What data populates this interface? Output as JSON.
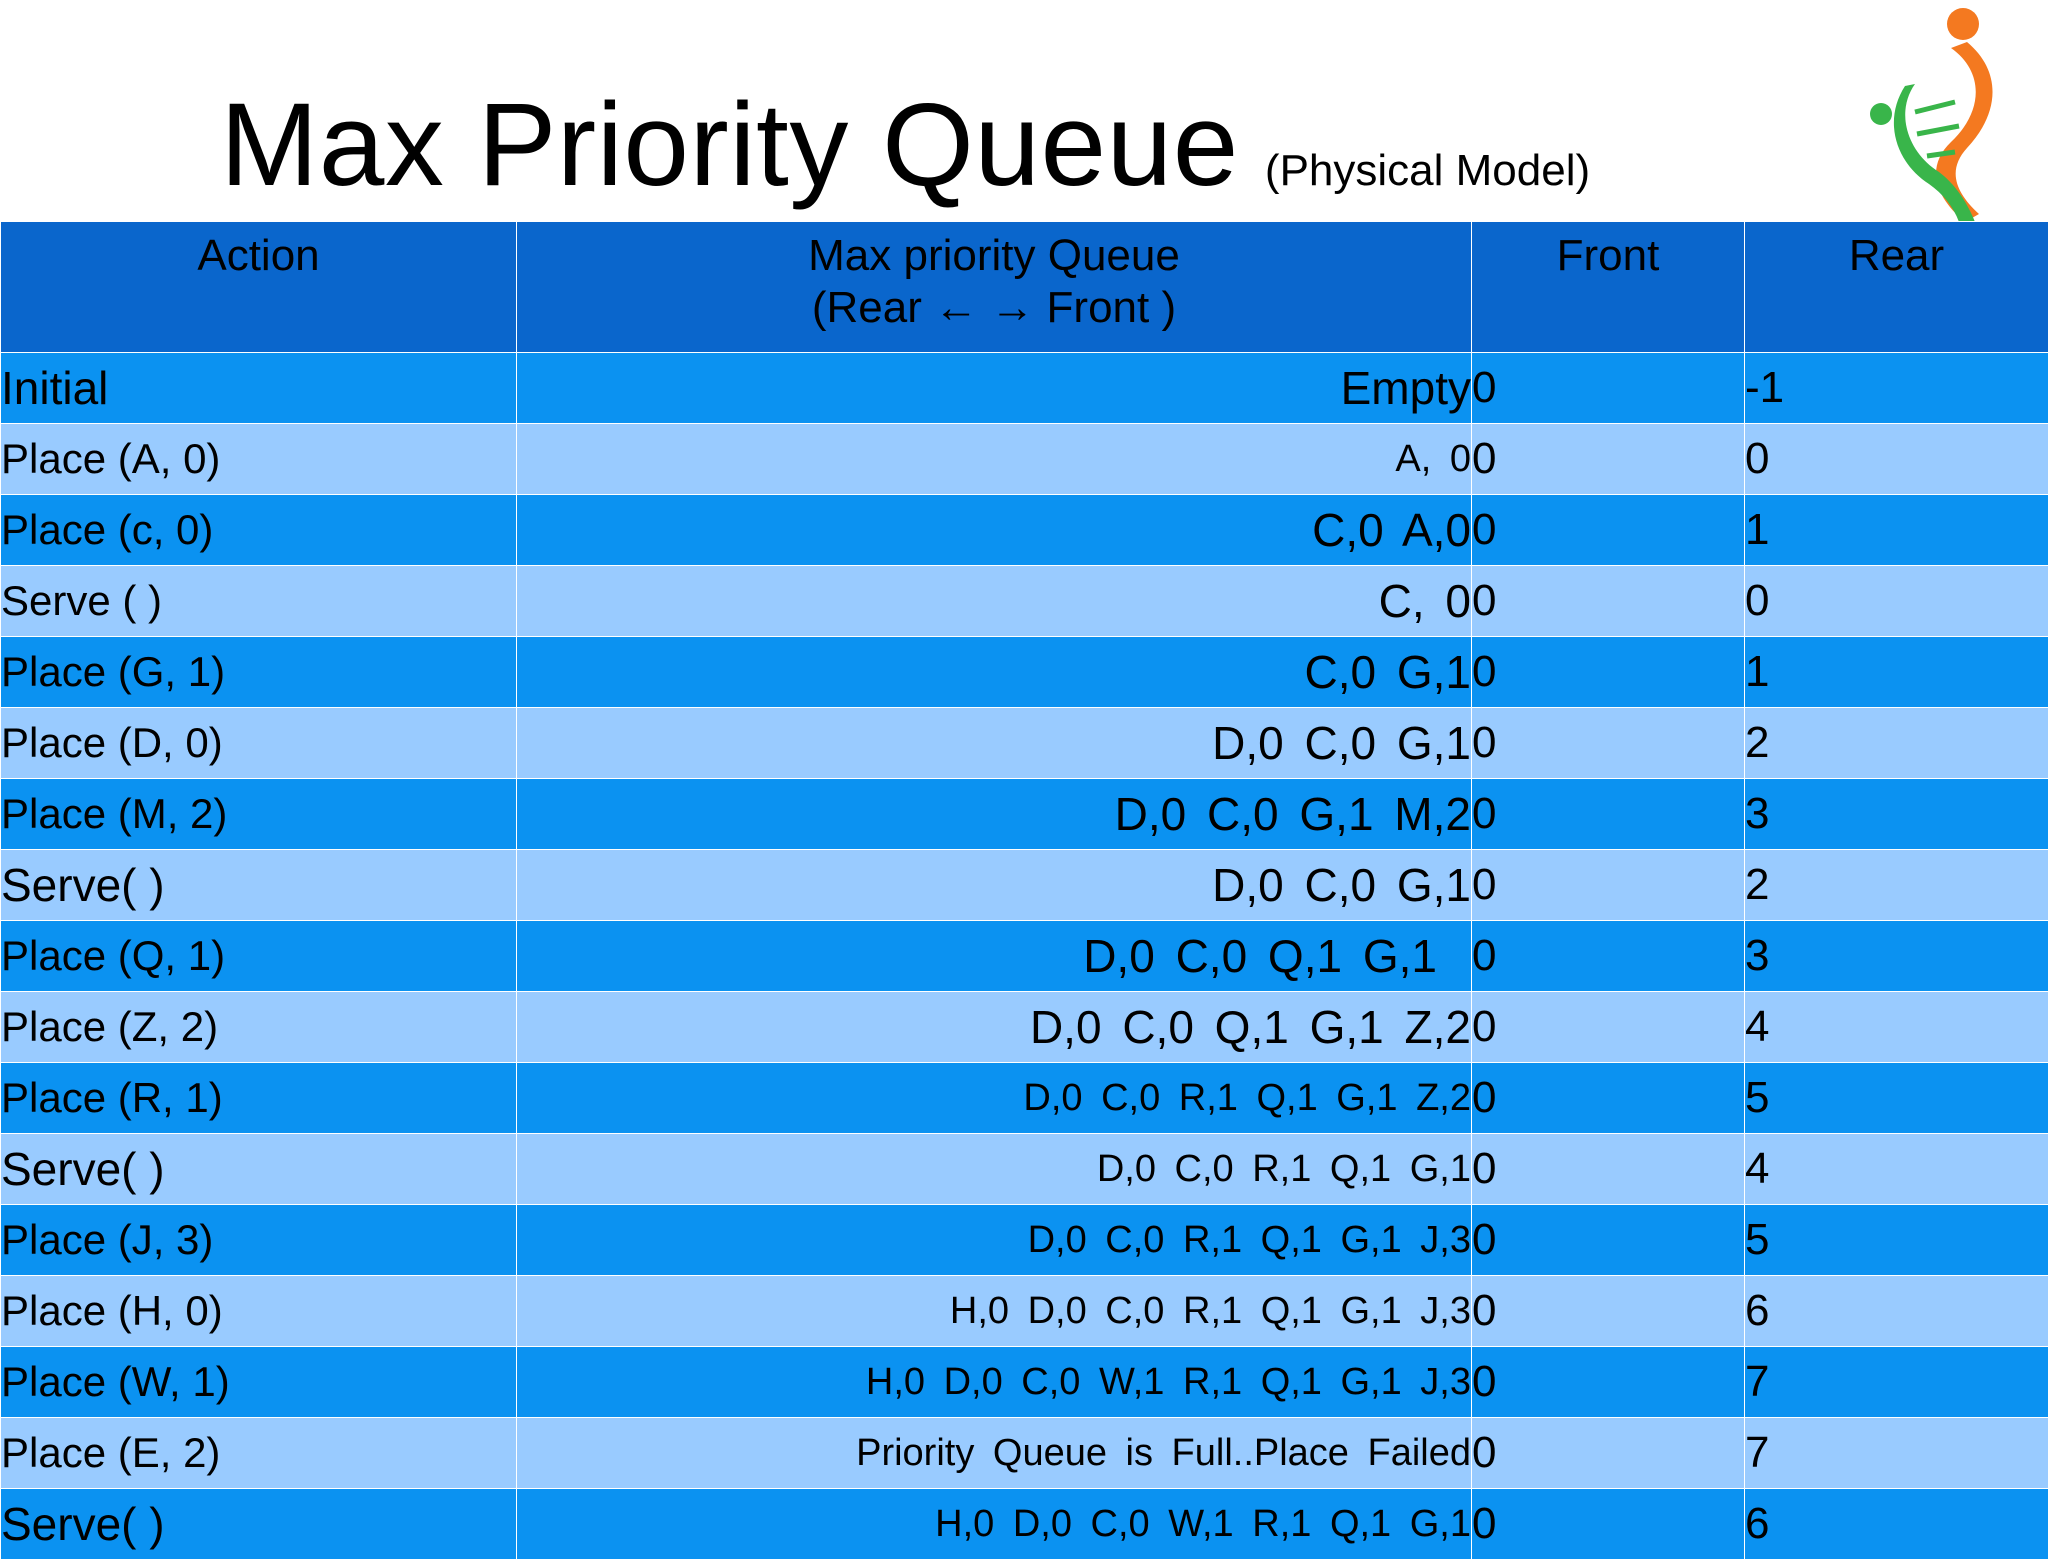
{
  "title": {
    "main": "Max Priority Queue",
    "sub": "(Physical Model)"
  },
  "logo": {
    "icon": "dna-person-logo",
    "colors": {
      "orange": "#f47920",
      "green": "#39b54a"
    }
  },
  "colors": {
    "header": "#0a66cc",
    "row_dark": "#0b92f1",
    "row_light": "#99cbff"
  },
  "table": {
    "headers": {
      "action": "Action",
      "queue_line1": "Max priority Queue",
      "queue_line2": "(Rear ← → Front )",
      "front": "Front",
      "rear": "Rear"
    },
    "rows": [
      {
        "action": "Initial",
        "queue": "Empty",
        "front": "0",
        "rear": "-1"
      },
      {
        "action": "Place (A, 0)",
        "queue": "A, 0",
        "front": "0",
        "rear": "0"
      },
      {
        "action": "Place (c, 0)",
        "queue": "C,0  A,0",
        "front": "0",
        "rear": "1"
      },
      {
        "action": "Serve ( )",
        "queue": "C, 0",
        "front": "0",
        "rear": "0"
      },
      {
        "action": "Place (G, 1)",
        "queue": "C,0  G,1",
        "front": "0",
        "rear": "1"
      },
      {
        "action": "Place (D, 0)",
        "queue": "D,0  C,0  G,1",
        "front": "0",
        "rear": "2"
      },
      {
        "action": "Place (M, 2)",
        "queue": "D,0  C,0  G,1  M,2",
        "front": "0",
        "rear": "3"
      },
      {
        "action": "Serve( )",
        "queue": "D,0  C,0  G,1",
        "front": "0",
        "rear": "2"
      },
      {
        "action": "Place (Q, 1)",
        "queue": "D,0  C,0  Q,1  G,1",
        "front": "0",
        "rear": "3"
      },
      {
        "action": "Place (Z, 2)",
        "queue": "D,0  C,0  Q,1  G,1  Z,2",
        "front": "0",
        "rear": "4"
      },
      {
        "action": "Place (R, 1)",
        "queue": "D,0  C,0  R,1  Q,1  G,1  Z,2",
        "front": "0",
        "rear": "5"
      },
      {
        "action": "Serve( )",
        "queue": "D,0  C,0  R,1  Q,1  G,1",
        "front": "0",
        "rear": "4"
      },
      {
        "action": "Place (J, 3)",
        "queue": "D,0  C,0  R,1  Q,1  G,1  J,3",
        "front": "0",
        "rear": "5"
      },
      {
        "action": "Place (H, 0)",
        "queue": "H,0  D,0  C,0  R,1  Q,1  G,1  J,3",
        "front": "0",
        "rear": "6"
      },
      {
        "action": "Place (W, 1)",
        "queue": "H,0  D,0  C,0  W,1  R,1  Q,1  G,1  J,3",
        "front": "0",
        "rear": "7"
      },
      {
        "action": "Place (E, 2)",
        "queue": "Priority Queue is Full..Place Failed",
        "front": "0",
        "rear": "7"
      },
      {
        "action": "Serve( )",
        "queue": "H,0  D,0  C,0  W,1  R,1  Q,1  G,1",
        "front": "0",
        "rear": "6"
      }
    ]
  }
}
